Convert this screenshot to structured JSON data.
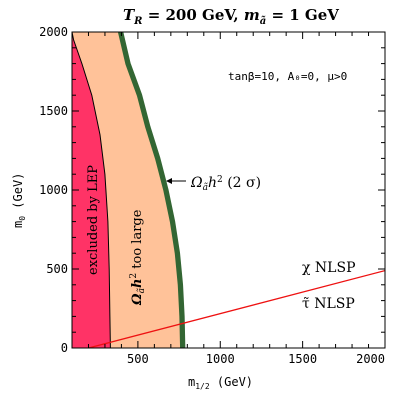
{
  "chart_data": {
    "type": "area",
    "title": "T_R = 200 GeV,  m_ã = 1 GeV",
    "title_parts": {
      "t": "T",
      "t_sub": "R",
      "eq1": " = 200 GeV,  ",
      "m": "m",
      "m_sub": "ã",
      "eq2": " = 1 GeV"
    },
    "xlabel": "m",
    "xlabel_sub": "1/2",
    "xlabel_unit": " (GeV)",
    "ylabel": "m",
    "ylabel_sub": "0",
    "ylabel_unit": " (GeV)",
    "xlim": [
      100,
      2000
    ],
    "ylim": [
      0,
      2000
    ],
    "xticks": [
      500,
      1000,
      1500,
      2000
    ],
    "yticks": [
      0,
      500,
      1000,
      1500,
      2000
    ],
    "xtick_labels": [
      "500",
      "1000",
      "1500",
      "2000"
    ],
    "ytick_labels": [
      "0",
      "500",
      "1000",
      "1500",
      "2000"
    ],
    "params_text": "tanβ=10, A₀=0, μ>0",
    "regions": [
      {
        "label": "excluded by LEP",
        "color": "#ff3366",
        "boundary": [
          [
            100,
            2000
          ],
          [
            110,
            1950
          ],
          [
            160,
            1800
          ],
          [
            220,
            1600
          ],
          [
            270,
            1350
          ],
          [
            300,
            1100
          ],
          [
            318,
            800
          ],
          [
            326,
            500
          ],
          [
            330,
            200
          ],
          [
            333,
            0
          ]
        ]
      },
      {
        "label": "Ω_ã h² too large",
        "label_parts": {
          "omega": "Ω",
          "omega_sub": "ã",
          "h": "h",
          "h_sup": "2",
          "rest": " too large"
        },
        "color": "#ffc299",
        "outer_boundary": [
          [
            395,
            2000
          ],
          [
            440,
            1800
          ],
          [
            510,
            1600
          ],
          [
            560,
            1400
          ],
          [
            620,
            1200
          ],
          [
            670,
            1000
          ],
          [
            710,
            800
          ],
          [
            740,
            600
          ],
          [
            758,
            400
          ],
          [
            768,
            200
          ],
          [
            772,
            0
          ]
        ]
      },
      {
        "label": "Ω_ã h² (2σ)",
        "label_parts": {
          "omega": "Ω",
          "omega_sub": "ã",
          "h": "h",
          "h_sup": "2",
          "rest": " (2 σ)"
        },
        "color": "#336633",
        "band_width": 32
      }
    ],
    "nlsp_line": {
      "color": "#ee1111",
      "points": [
        [
          200,
          0
        ],
        [
          2000,
          490
        ]
      ],
      "label_above": "χ NLSP",
      "label_below": "τ̃ NLSP"
    }
  }
}
